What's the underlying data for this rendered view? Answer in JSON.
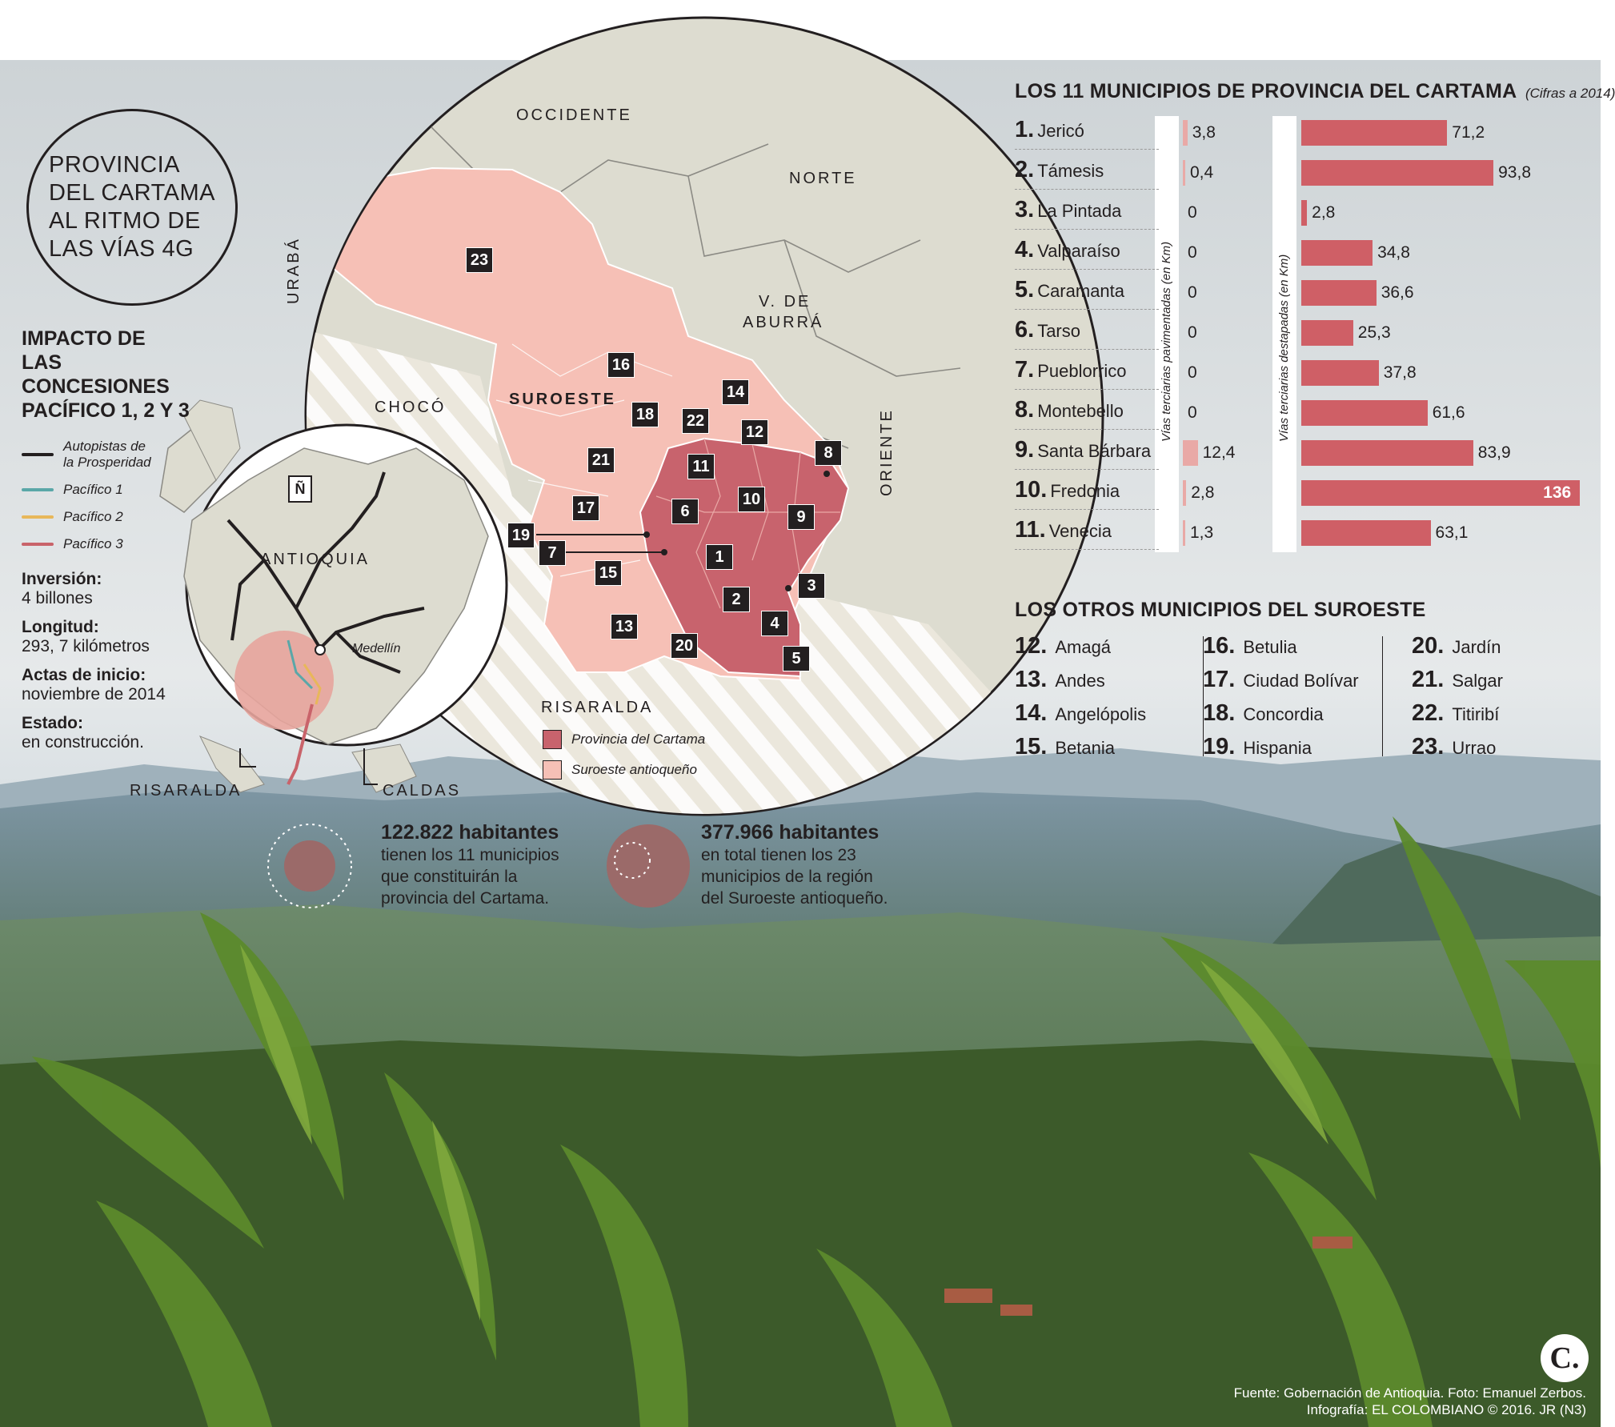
{
  "header": {
    "title_lines": [
      "PROVINCIA",
      "DEL CARTAMA",
      "AL RITMO DE",
      "LAS VÍAS 4G"
    ]
  },
  "impact": {
    "title_lines": [
      "IMPACTO DE",
      "LAS CONCESIONES",
      "PACÍFICO 1, 2 Y 3"
    ],
    "legend": [
      {
        "label": "Autopistas de la Prosperidad",
        "lines": [
          "Autopistas de",
          "la Prosperidad"
        ],
        "color": "#231f20"
      },
      {
        "label": "Pacífico 1",
        "lines": [
          "Pacífico 1"
        ],
        "color": "#5aa7a8"
      },
      {
        "label": "Pacífico 2",
        "lines": [
          "Pacífico 2"
        ],
        "color": "#e8b75a"
      },
      {
        "label": "Pacífico 3",
        "lines": [
          "Pacífico 3"
        ],
        "color": "#c9636a"
      }
    ],
    "facts": [
      {
        "label": "Inversión:",
        "value": "4 billones"
      },
      {
        "label": "Longitud:",
        "value": "293, 7 kilómetros"
      },
      {
        "label": "Actas de inicio:",
        "value": "noviembre de 2014"
      },
      {
        "label": "Estado:",
        "value": "en construcción."
      }
    ]
  },
  "map": {
    "regions": {
      "occidente": "OCCIDENTE",
      "norte": "NORTE",
      "uraba": "URABÁ",
      "aburra": "V. DE",
      "aburra2": "ABURRÁ",
      "oriente": "ORIENTE",
      "choco": "CHOCÓ",
      "suroeste": "SUROESTE",
      "risaralda": "RISARALDA",
      "antioquia": "ANTIOQUIA",
      "risaralda_small": "RISARALDA",
      "caldas": "CALDAS",
      "medellin": "Medellín"
    },
    "north_symbol": "Ñ",
    "badges": [
      "1",
      "2",
      "3",
      "4",
      "5",
      "6",
      "7",
      "8",
      "9",
      "10",
      "11",
      "12",
      "13",
      "14",
      "15",
      "16",
      "17",
      "18",
      "19",
      "20",
      "21",
      "22",
      "23"
    ],
    "legend": [
      {
        "label": "Provincia del Cartama",
        "color": "#c8636d"
      },
      {
        "label": "Suroeste antioqueño",
        "color": "#f6c0b6"
      }
    ]
  },
  "population": [
    {
      "number": "122.822 habitantes",
      "text_lines": [
        "tienen los 11 municipios",
        "que constituirán la",
        "provincia del Cartama."
      ]
    },
    {
      "number": "377.966 habitantes",
      "text_lines": [
        "en total tienen los 23",
        "municipios de la región",
        "del Suroeste antioqueño."
      ]
    }
  ],
  "chart_data": {
    "type": "bar",
    "title": "LOS 11 MUNICIPIOS DE PROVINCIA DEL CARTAMA",
    "subtitle": "(Cifras a 2014)",
    "categories": [
      "Jericó",
      "Támesis",
      "La Pintada",
      "Valparaíso",
      "Caramanta",
      "Tarso",
      "Pueblorrico",
      "Montebello",
      "Santa Bárbara",
      "Fredonia",
      "Venecia"
    ],
    "numbers": [
      "1.",
      "2.",
      "3.",
      "4.",
      "5.",
      "6.",
      "7.",
      "8.",
      "9.",
      "10.",
      "11."
    ],
    "series": [
      {
        "name": "Vías terciarias pavimentadas (en Km)",
        "values": [
          3.8,
          0.4,
          0,
          0,
          0,
          0,
          0,
          0,
          12.4,
          2.8,
          1.3
        ],
        "labels": [
          "3,8",
          "0,4",
          "0",
          "0",
          "0",
          "0",
          "0",
          "0",
          "12,4",
          "2,8",
          "1,3"
        ],
        "color": "#e9a9a6",
        "max": 40
      },
      {
        "name": "Vías terciarias destapadas (en Km)",
        "values": [
          71.2,
          93.8,
          2.8,
          34.8,
          36.6,
          25.3,
          37.8,
          61.6,
          83.9,
          136,
          63.1
        ],
        "labels": [
          "71,2",
          "93,8",
          "2,8",
          "34,8",
          "36,6",
          "25,3",
          "37,8",
          "61,6",
          "83,9",
          "136",
          "63,1"
        ],
        "color": "#cf5f66",
        "max": 140
      }
    ]
  },
  "others": {
    "title": "LOS OTROS MUNICIPIOS DEL SUROESTE",
    "columns": [
      [
        {
          "n": "12.",
          "name": "Amagá"
        },
        {
          "n": "13.",
          "name": "Andes"
        },
        {
          "n": "14.",
          "name": "Angelópolis"
        },
        {
          "n": "15.",
          "name": "Betania"
        }
      ],
      [
        {
          "n": "16.",
          "name": "Betulia"
        },
        {
          "n": "17.",
          "name": "Ciudad Bolívar"
        },
        {
          "n": "18.",
          "name": "Concordia"
        },
        {
          "n": "19.",
          "name": "Hispania"
        }
      ],
      [
        {
          "n": "20.",
          "name": "Jardín"
        },
        {
          "n": "21.",
          "name": "Salgar"
        },
        {
          "n": "22.",
          "name": "Titiribí"
        },
        {
          "n": "23.",
          "name": "Urrao"
        }
      ]
    ]
  },
  "footer": {
    "logo": "C.",
    "line1": "Fuente: Gobernación de Antioquia. Foto: Emanuel Zerbos.",
    "line2": "Infografía: EL COLOMBIANO © 2016. JR (N3)"
  }
}
